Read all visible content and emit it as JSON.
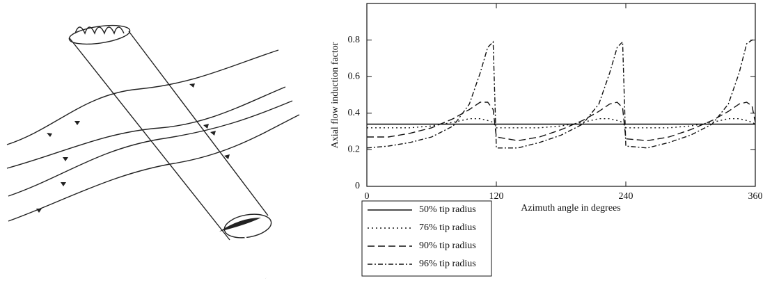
{
  "chart_data": {
    "type": "line",
    "x_label": "Azimuth angle in degrees",
    "y_label": "Axial flow induction factor",
    "x": [
      0,
      20,
      40,
      60,
      80,
      95,
      105,
      112,
      117,
      120,
      140,
      160,
      180,
      200,
      215,
      225,
      232,
      237,
      240,
      260,
      280,
      300,
      320,
      335,
      345,
      352,
      357,
      360
    ],
    "xlim": [
      0,
      360
    ],
    "xticks": [
      0,
      120,
      240,
      360
    ],
    "ylim": [
      0,
      1.0
    ],
    "yticks": [
      0,
      0.2,
      0.4,
      0.6,
      0.8
    ],
    "legend": "below",
    "series": [
      {
        "name": "50% tip radius",
        "color": "#111111",
        "dash": "solid",
        "values": [
          0.34,
          0.34,
          0.34,
          0.34,
          0.34,
          0.34,
          0.34,
          0.34,
          0.34,
          0.34,
          0.34,
          0.34,
          0.34,
          0.34,
          0.34,
          0.34,
          0.34,
          0.34,
          0.34,
          0.34,
          0.34,
          0.34,
          0.34,
          0.34,
          0.34,
          0.34,
          0.34,
          0.34
        ]
      },
      {
        "name": "76% tip radius",
        "color": "#111111",
        "dash": "dotted",
        "values": [
          0.32,
          0.32,
          0.32,
          0.33,
          0.35,
          0.37,
          0.37,
          0.36,
          0.35,
          0.32,
          0.32,
          0.32,
          0.33,
          0.35,
          0.37,
          0.37,
          0.36,
          0.35,
          0.32,
          0.32,
          0.32,
          0.33,
          0.35,
          0.37,
          0.37,
          0.36,
          0.35,
          0.34
        ]
      },
      {
        "name": "90% tip radius",
        "color": "#111111",
        "dash": "dashed",
        "values": [
          0.27,
          0.27,
          0.29,
          0.32,
          0.37,
          0.42,
          0.46,
          0.46,
          0.42,
          0.27,
          0.25,
          0.27,
          0.31,
          0.36,
          0.41,
          0.45,
          0.46,
          0.43,
          0.26,
          0.25,
          0.27,
          0.31,
          0.36,
          0.41,
          0.45,
          0.46,
          0.44,
          0.35
        ]
      },
      {
        "name": "96% tip radius",
        "color": "#111111",
        "dash": "dashdot",
        "values": [
          0.21,
          0.22,
          0.24,
          0.27,
          0.33,
          0.45,
          0.62,
          0.76,
          0.79,
          0.21,
          0.21,
          0.24,
          0.28,
          0.34,
          0.45,
          0.62,
          0.76,
          0.79,
          0.22,
          0.21,
          0.24,
          0.28,
          0.34,
          0.45,
          0.62,
          0.78,
          0.8,
          0.8
        ]
      }
    ]
  }
}
